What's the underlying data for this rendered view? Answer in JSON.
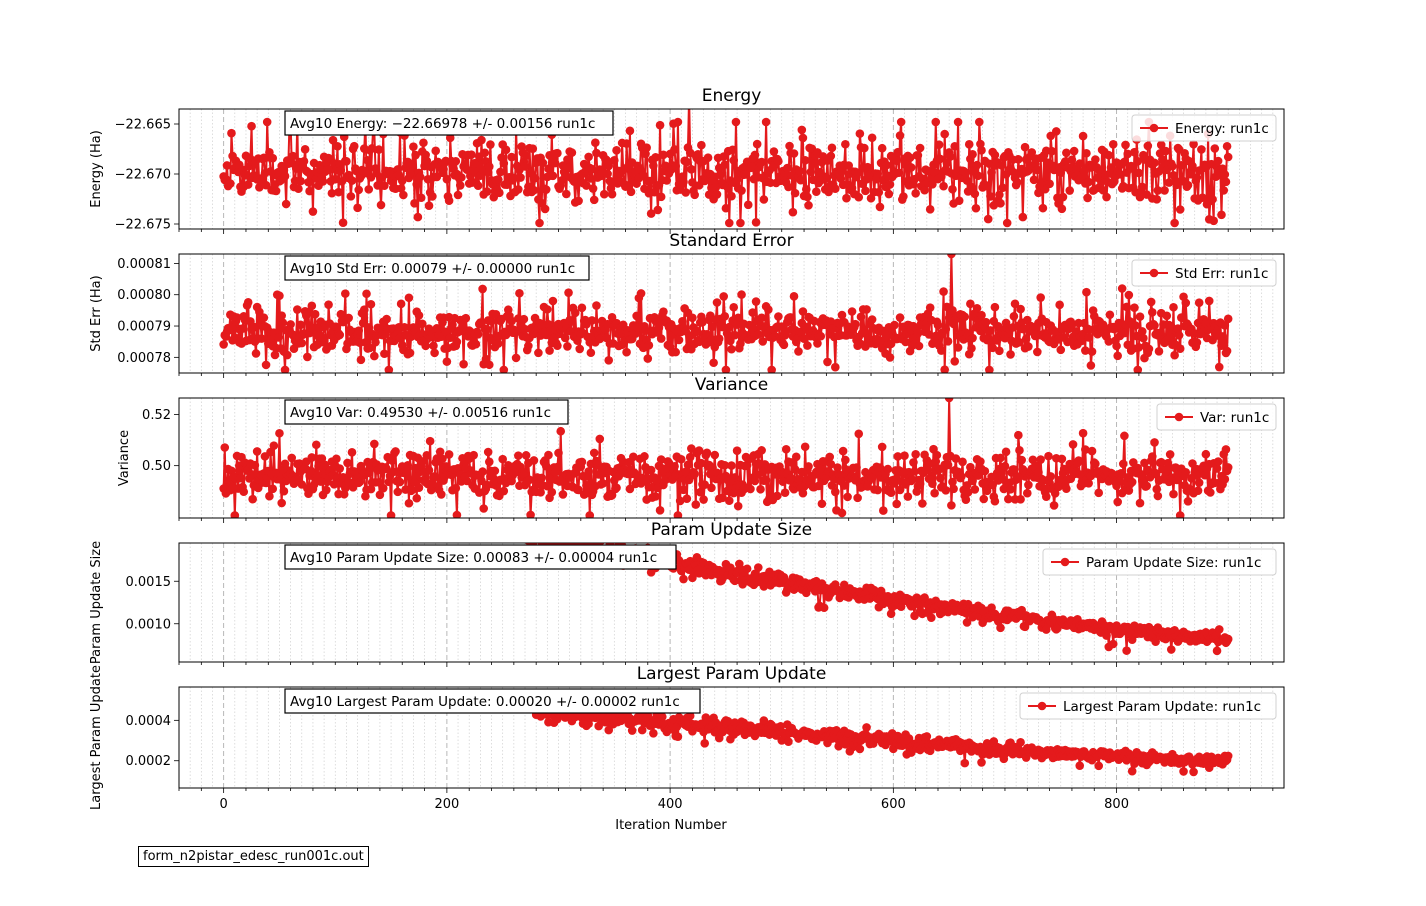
{
  "footer_label": "form_n2pistar_edesc_run001c.out",
  "xlabel": "Iteration Number",
  "series_color": "#e41a1c",
  "chart_data": [
    {
      "type": "line",
      "title": "Energy",
      "ylabel": "Energy (Ha)",
      "annotation": "Avg10 Energy: −22.66978 +/- 0.00156  run1c",
      "legend": "Energy: run1c",
      "legend_position": "upper right",
      "xlim": [
        -40,
        950
      ],
      "ylim": [
        -22.6755,
        -22.6635
      ],
      "yticks": [
        -22.665,
        -22.67,
        -22.675
      ],
      "ytick_labels": [
        "−22.665",
        "−22.670",
        "−22.675"
      ],
      "x_start": 0,
      "x_end": 900,
      "gen": {
        "kind": "noise",
        "center": -22.6698,
        "sd": 0.0016,
        "lo": -22.6749,
        "hi": -22.6648,
        "spike_x": 417,
        "spike_y": -22.6623,
        "seed": 11
      }
    },
    {
      "type": "line",
      "title": "Standard Error",
      "ylabel": "Std Err (Ha)",
      "annotation": "Avg10 Std Err: 0.00079 +/- 0.00000  run1c",
      "legend": "Std Err: run1c",
      "legend_position": "upper right",
      "xlim": [
        -40,
        950
      ],
      "ylim": [
        0.000775,
        0.000813
      ],
      "yticks": [
        0.00081,
        0.0008,
        0.00079,
        0.00078
      ],
      "ytick_labels": [
        "0.00081",
        "0.00080",
        "0.00079",
        "0.00078"
      ],
      "x_start": 0,
      "x_end": 900,
      "gen": {
        "kind": "noise",
        "center": 0.000788,
        "sd": 3.5e-06,
        "lo": 0.000776,
        "hi": 0.000808,
        "spike_x": 652,
        "spike_y": 0.000813,
        "seed": 23
      }
    },
    {
      "type": "line",
      "title": "Variance",
      "ylabel": "Variance",
      "annotation": "Avg10 Var: 0.49530 +/- 0.00516  run1c",
      "legend": "Var: run1c",
      "legend_position": "upper right",
      "xlim": [
        -40,
        950
      ],
      "ylim": [
        0.4795,
        0.5265
      ],
      "yticks": [
        0.52,
        0.5
      ],
      "ytick_labels": [
        "0.52",
        "0.50"
      ],
      "x_start": 0,
      "x_end": 900,
      "gen": {
        "kind": "noise",
        "center": 0.496,
        "sd": 0.0045,
        "lo": 0.4805,
        "hi": 0.5185,
        "spike_x": 650,
        "spike_y": 0.5265,
        "seed": 37
      }
    },
    {
      "type": "line",
      "title": "Param Update Size",
      "ylabel": "Param Update Size",
      "annotation": "Avg10 Param Update Size: 0.00083 +/- 0.00004  run1c",
      "legend": "Param Update Size: run1c",
      "legend_position": "upper right",
      "xlim": [
        -40,
        950
      ],
      "ylim": [
        0.00055,
        0.00195
      ],
      "yticks": [
        0.0015,
        0.001
      ],
      "ytick_labels": [
        "0.0015",
        "0.0010"
      ],
      "x_start": 270,
      "x_end": 900,
      "gen": {
        "kind": "decay",
        "a": 0.00205,
        "b": 0.00083,
        "x0": 270,
        "x1": 900,
        "noise": 6e-05,
        "seed": 51
      }
    },
    {
      "type": "line",
      "title": "Largest Param Update",
      "ylabel": "Largest Param Update",
      "annotation": "Avg10 Largest Param Update: 0.00020 +/- 0.00002  run1c",
      "legend": "Largest Param Update: run1c",
      "legend_position": "upper right",
      "xlim": [
        -40,
        950
      ],
      "ylim": [
        6.5e-05,
        0.000565
      ],
      "yticks": [
        0.0004,
        0.0002
      ],
      "ytick_labels": [
        "0.0004",
        "0.0002"
      ],
      "x_start": 280,
      "x_end": 900,
      "gen": {
        "kind": "decay",
        "a": 0.00045,
        "b": 0.0002,
        "x0": 280,
        "x1": 900,
        "noise": 2.2e-05,
        "seed": 67
      }
    }
  ],
  "xticks": [
    0,
    200,
    400,
    600,
    800
  ],
  "xtick_labels": [
    "0",
    "200",
    "400",
    "600",
    "800"
  ]
}
